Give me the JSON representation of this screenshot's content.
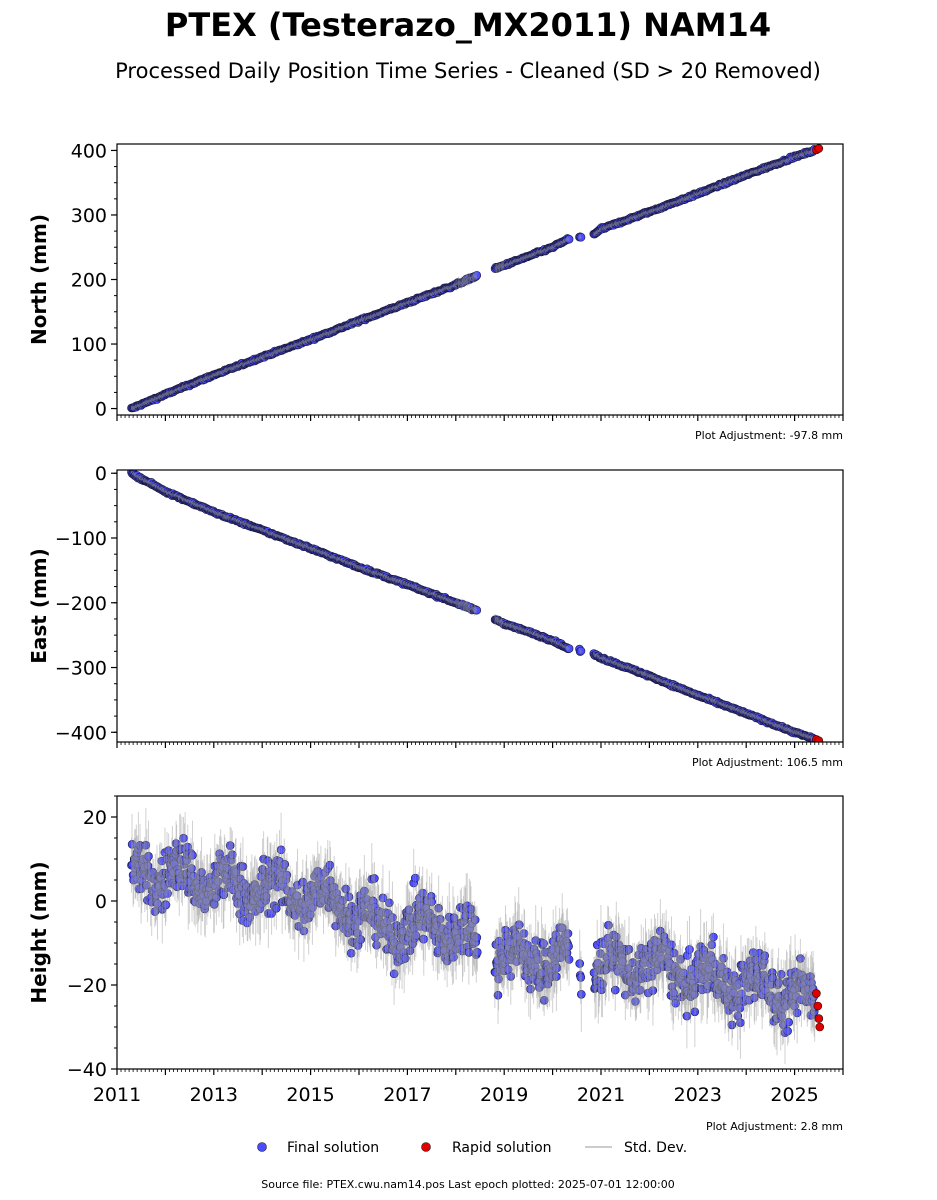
{
  "title": "PTEX (Testerazo_MX2011) NAM14",
  "subtitle": "Processed Daily Position Time Series - Cleaned (SD > 20 Removed)",
  "footer": "Source file: PTEX.cwu.nam14.pos  Last epoch plotted: 2025-07-01 12:00:00",
  "legend": {
    "final": "Final solution",
    "rapid": "Rapid solution",
    "stddev": "Std. Dev."
  },
  "colors": {
    "final": "#4b4bff",
    "rapid": "#e00000",
    "stddev": "#999999"
  },
  "chart_data": [
    {
      "type": "scatter",
      "ylabel": "North (mm)",
      "adjustment_label": "Plot Adjustment: -97.8 mm",
      "xlim": [
        2011,
        2026
      ],
      "ylim": [
        -10,
        410
      ],
      "yticks": [
        0,
        100,
        200,
        300,
        400
      ],
      "ytick_labels": [
        "0",
        "100",
        "200",
        "300",
        "400"
      ],
      "series": [
        {
          "name": "Final solution",
          "x": [
            2011.3,
            2012,
            2013,
            2014,
            2015,
            2016,
            2017,
            2018,
            2018.5,
            2019,
            2020,
            2020.3,
            2020.8,
            2021,
            2022,
            2023,
            2024,
            2025,
            2025.4
          ],
          "values": [
            0,
            22,
            52,
            80,
            107,
            136,
            164,
            192,
            208,
            222,
            250,
            262,
            268,
            278,
            305,
            333,
            362,
            390,
            400
          ]
        },
        {
          "name": "Rapid solution",
          "x": [
            2025.45,
            2025.5
          ],
          "values": [
            401,
            403
          ]
        }
      ]
    },
    {
      "type": "scatter",
      "ylabel": "East (mm)",
      "adjustment_label": "Plot Adjustment: 106.5 mm",
      "xlim": [
        2011,
        2026
      ],
      "ylim": [
        -415,
        5
      ],
      "yticks": [
        0,
        -100,
        -200,
        -300,
        -400
      ],
      "ytick_labels": [
        "0",
        "−100",
        "−200",
        "−300",
        "−400"
      ],
      "series": [
        {
          "name": "Final solution",
          "x": [
            2011.3,
            2012,
            2013,
            2014,
            2015,
            2016,
            2017,
            2018,
            2018.5,
            2019,
            2020,
            2020.3,
            2020.8,
            2021,
            2022,
            2023,
            2024,
            2025,
            2025.4
          ],
          "values": [
            0,
            -28,
            -60,
            -88,
            -116,
            -145,
            -172,
            -200,
            -214,
            -232,
            -258,
            -270,
            -278,
            -285,
            -313,
            -343,
            -371,
            -400,
            -410
          ]
        },
        {
          "name": "Rapid solution",
          "x": [
            2025.45,
            2025.5
          ],
          "values": [
            -411,
            -413
          ]
        }
      ]
    },
    {
      "type": "scatter",
      "ylabel": "Height (mm)",
      "adjustment_label": "Plot Adjustment: 2.8 mm",
      "xlim": [
        2011,
        2026
      ],
      "ylim": [
        -40,
        25
      ],
      "yticks": [
        20,
        0,
        -20,
        -40
      ],
      "ytick_labels": [
        "20",
        "0",
        "−20",
        "−40"
      ],
      "xticks": [
        2011,
        2013,
        2015,
        2017,
        2019,
        2021,
        2023,
        2025
      ],
      "series": [
        {
          "name": "Final solution",
          "x": [
            2011.3,
            2011.5,
            2012,
            2012.5,
            2013,
            2013.5,
            2014,
            2014.5,
            2015,
            2015.5,
            2016,
            2016.5,
            2017,
            2017.5,
            2018,
            2018.5,
            2018.8,
            2019,
            2019.5,
            2020,
            2020.5,
            2021,
            2021.5,
            2022,
            2022.5,
            2023,
            2023.5,
            2024,
            2024.5,
            2025,
            2025.4
          ],
          "values": [
            6,
            8,
            5,
            7,
            3,
            4,
            2,
            3,
            0,
            2,
            -4,
            -6,
            -7,
            -5,
            -8,
            -9,
            -12,
            -13,
            -14,
            -13,
            -15,
            -15,
            -16,
            -15,
            -17,
            -18,
            -19,
            -20,
            -21,
            -22,
            -24
          ]
        },
        {
          "name": "Rapid solution",
          "x": [
            2025.45,
            2025.48,
            2025.5,
            2025.52
          ],
          "values": [
            -22,
            -25,
            -28,
            -30
          ]
        }
      ]
    }
  ]
}
